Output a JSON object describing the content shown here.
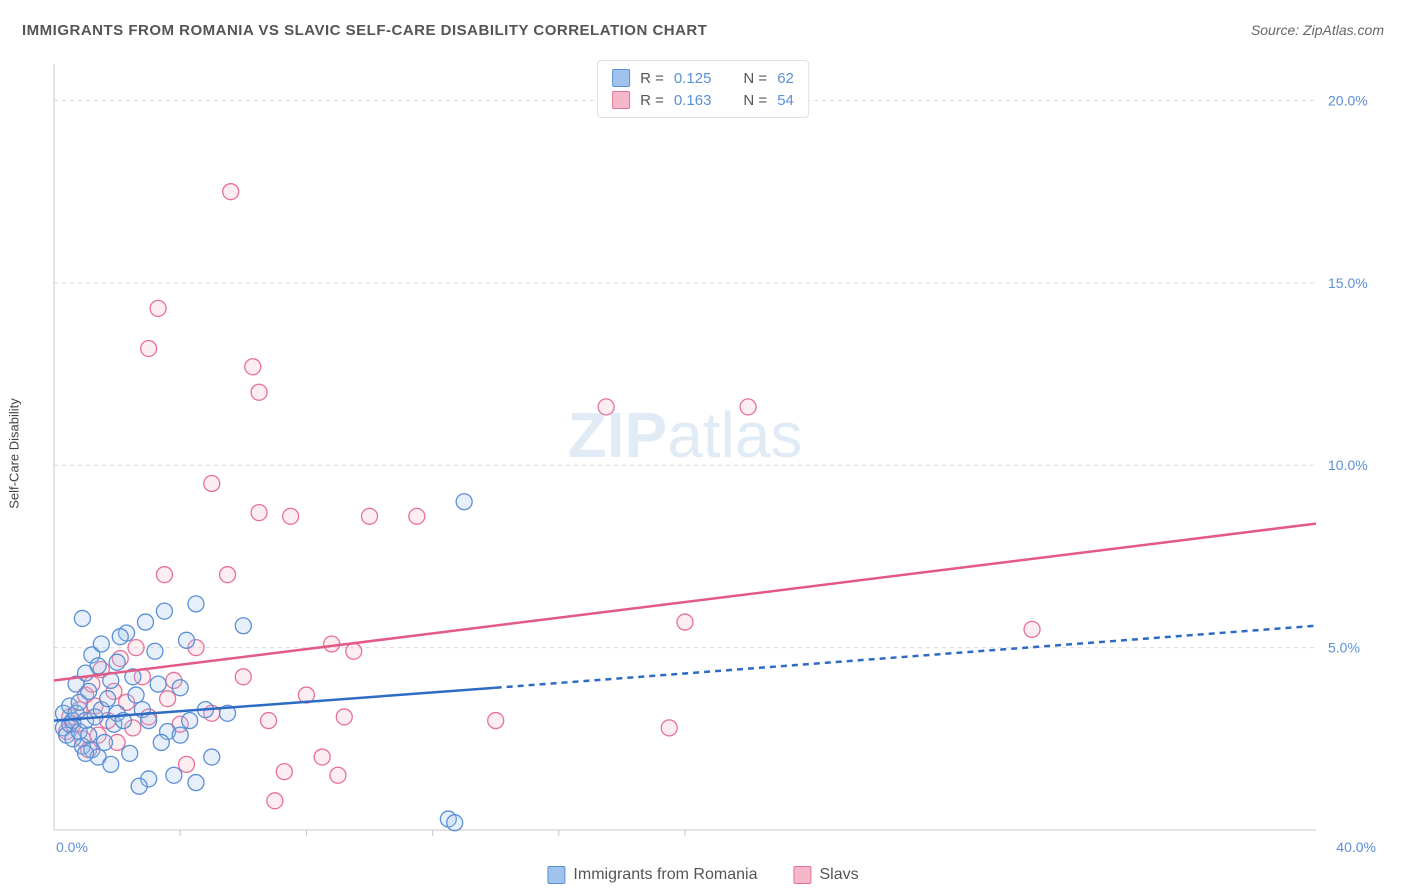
{
  "meta": {
    "title": "IMMIGRANTS FROM ROMANIA VS SLAVIC SELF-CARE DISABILITY CORRELATION CHART",
    "source_prefix": "Source: ",
    "source_name": "ZipAtlas.com",
    "watermark_a": "ZIP",
    "watermark_b": "atlas",
    "y_axis_label": "Self-Care Disability"
  },
  "colors": {
    "series_a_fill": "#9fc3ec",
    "series_a_stroke": "#5b8fd6",
    "series_b_fill": "#f5b8c8",
    "series_b_stroke": "#e77099",
    "grid": "#dcdcdc",
    "axis_text": "#5b8fd6",
    "trend_a": "#2d6bc4",
    "trend_b": "#e35a85",
    "watermark": "#e0ebf6"
  },
  "legend_top": [
    {
      "swatch": "a",
      "r_label": "R =",
      "r": "0.125",
      "n_label": "N =",
      "n": "62"
    },
    {
      "swatch": "b",
      "r_label": "R =",
      "r": "0.163",
      "n_label": "N =",
      "n": "54"
    }
  ],
  "legend_bottom": [
    {
      "swatch": "a",
      "label": "Immigrants from Romania"
    },
    {
      "swatch": "b",
      "label": "Slavs"
    }
  ],
  "chart": {
    "type": "scatter",
    "xlim": [
      0,
      40
    ],
    "ylim": [
      0,
      21
    ],
    "x_ticks": [
      {
        "v": 0,
        "label": "0.0%"
      },
      {
        "v": 40,
        "label": "40.0%"
      }
    ],
    "x_minor_ticks": [
      4,
      8,
      12,
      16,
      20
    ],
    "y_ticks": [
      {
        "v": 5,
        "label": "5.0%"
      },
      {
        "v": 10,
        "label": "10.0%"
      },
      {
        "v": 15,
        "label": "15.0%"
      },
      {
        "v": 20,
        "label": "20.0%"
      }
    ],
    "marker_radius": 8,
    "trend_lines": {
      "a_solid": {
        "x1": 0,
        "y1": 3.0,
        "x2": 14,
        "y2": 3.9
      },
      "a_dashed": {
        "x1": 14,
        "y1": 3.9,
        "x2": 40,
        "y2": 5.6
      },
      "b": {
        "x1": 0,
        "y1": 4.1,
        "x2": 40,
        "y2": 8.4
      }
    },
    "series": {
      "a": {
        "name": "Immigrants from Romania",
        "points": [
          [
            0.3,
            2.8
          ],
          [
            0.3,
            3.2
          ],
          [
            0.4,
            2.6
          ],
          [
            0.5,
            2.9
          ],
          [
            0.5,
            3.4
          ],
          [
            0.6,
            2.5
          ],
          [
            0.6,
            3.0
          ],
          [
            0.7,
            3.2
          ],
          [
            0.7,
            4.0
          ],
          [
            0.8,
            2.7
          ],
          [
            0.8,
            3.5
          ],
          [
            0.9,
            2.3
          ],
          [
            0.9,
            5.8
          ],
          [
            1.0,
            3.0
          ],
          [
            1.0,
            4.3
          ],
          [
            1.1,
            2.6
          ],
          [
            1.1,
            3.8
          ],
          [
            1.2,
            4.8
          ],
          [
            1.2,
            2.2
          ],
          [
            1.3,
            3.1
          ],
          [
            1.4,
            4.5
          ],
          [
            1.4,
            2.0
          ],
          [
            1.5,
            3.3
          ],
          [
            1.5,
            5.1
          ],
          [
            1.6,
            2.4
          ],
          [
            1.7,
            3.6
          ],
          [
            1.8,
            1.8
          ],
          [
            1.8,
            4.1
          ],
          [
            1.9,
            2.9
          ],
          [
            2.0,
            4.6
          ],
          [
            2.0,
            3.2
          ],
          [
            2.2,
            3.0
          ],
          [
            2.3,
            5.4
          ],
          [
            2.4,
            2.1
          ],
          [
            2.5,
            4.2
          ],
          [
            2.6,
            3.7
          ],
          [
            2.8,
            3.3
          ],
          [
            2.9,
            5.7
          ],
          [
            3.0,
            3.0
          ],
          [
            3.0,
            1.4
          ],
          [
            3.2,
            4.9
          ],
          [
            3.3,
            4.0
          ],
          [
            3.5,
            6.0
          ],
          [
            3.6,
            2.7
          ],
          [
            3.8,
            1.5
          ],
          [
            4.0,
            3.9
          ],
          [
            4.2,
            5.2
          ],
          [
            4.3,
            3.0
          ],
          [
            4.5,
            6.2
          ],
          [
            4.5,
            1.3
          ],
          [
            4.8,
            3.3
          ],
          [
            5.0,
            2.0
          ],
          [
            5.5,
            3.2
          ],
          [
            6.0,
            5.6
          ],
          [
            12.5,
            0.3
          ],
          [
            12.7,
            0.2
          ],
          [
            13.0,
            9.0
          ],
          [
            2.7,
            1.2
          ],
          [
            3.4,
            2.4
          ],
          [
            4.0,
            2.6
          ],
          [
            1.0,
            2.1
          ],
          [
            2.1,
            5.3
          ]
        ]
      },
      "b": {
        "name": "Slavs",
        "points": [
          [
            0.4,
            2.7
          ],
          [
            0.5,
            3.1
          ],
          [
            0.6,
            2.9
          ],
          [
            0.8,
            3.3
          ],
          [
            0.9,
            2.5
          ],
          [
            1.0,
            3.7
          ],
          [
            1.1,
            2.2
          ],
          [
            1.2,
            4.0
          ],
          [
            1.3,
            3.4
          ],
          [
            1.4,
            2.6
          ],
          [
            1.5,
            4.4
          ],
          [
            1.7,
            3.0
          ],
          [
            1.9,
            3.8
          ],
          [
            2.0,
            2.4
          ],
          [
            2.1,
            4.7
          ],
          [
            2.3,
            3.5
          ],
          [
            2.5,
            2.8
          ],
          [
            2.6,
            5.0
          ],
          [
            2.8,
            4.2
          ],
          [
            3.0,
            13.2
          ],
          [
            3.0,
            3.1
          ],
          [
            3.3,
            14.3
          ],
          [
            3.5,
            7.0
          ],
          [
            3.6,
            3.6
          ],
          [
            3.8,
            4.1
          ],
          [
            4.0,
            2.9
          ],
          [
            4.5,
            5.0
          ],
          [
            5.0,
            9.5
          ],
          [
            5.0,
            3.2
          ],
          [
            5.5,
            7.0
          ],
          [
            5.6,
            17.5
          ],
          [
            6.0,
            4.2
          ],
          [
            6.3,
            12.7
          ],
          [
            6.5,
            8.7
          ],
          [
            6.5,
            12.0
          ],
          [
            6.8,
            3.0
          ],
          [
            7.0,
            0.8
          ],
          [
            7.3,
            1.6
          ],
          [
            7.5,
            8.6
          ],
          [
            8.0,
            3.7
          ],
          [
            8.5,
            2.0
          ],
          [
            8.8,
            5.1
          ],
          [
            9.0,
            1.5
          ],
          [
            9.2,
            3.1
          ],
          [
            9.5,
            4.9
          ],
          [
            10.0,
            8.6
          ],
          [
            11.5,
            8.6
          ],
          [
            14.0,
            3.0
          ],
          [
            17.5,
            11.6
          ],
          [
            19.5,
            2.8
          ],
          [
            20.0,
            5.7
          ],
          [
            22.0,
            11.6
          ],
          [
            31.0,
            5.5
          ],
          [
            4.2,
            1.8
          ]
        ]
      }
    }
  }
}
